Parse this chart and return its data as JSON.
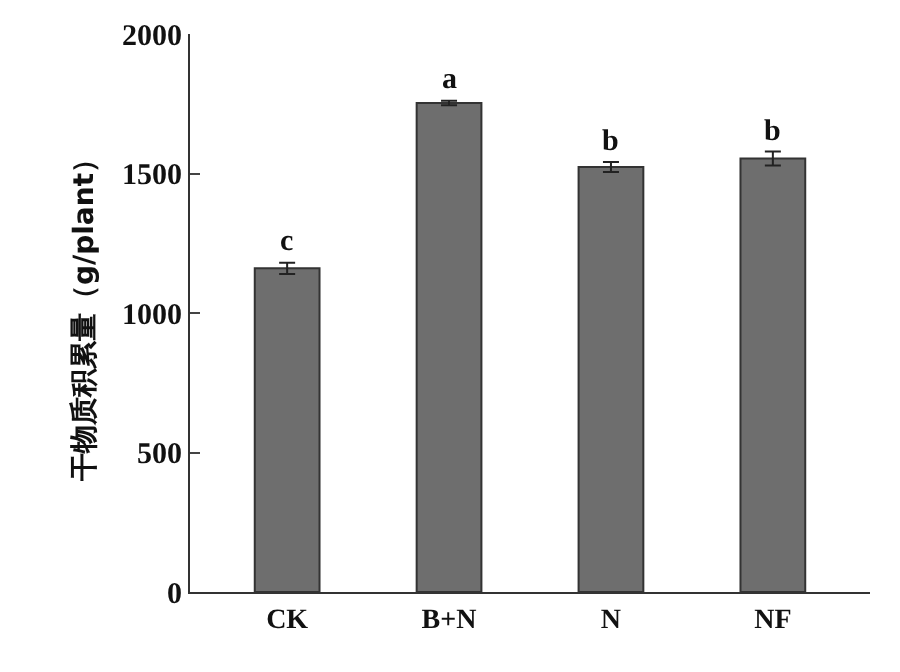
{
  "chart_data": {
    "type": "bar",
    "ylabel": "干物质积累量（g/plant）",
    "categories": [
      "CK",
      "B+N",
      "N",
      "NF"
    ],
    "values": [
      1160,
      1753,
      1523,
      1554
    ],
    "errors": [
      20,
      8,
      18,
      25
    ],
    "color": "#6e6e6e",
    "ylim": [
      0,
      2000
    ],
    "yticks": [
      0,
      500,
      1000,
      1500,
      2000
    ],
    "annotations": [
      {
        "text": "c",
        "x": "CK",
        "y": 1180
      },
      {
        "text": "a",
        "x": "B+N",
        "y": 1761
      },
      {
        "text": "b",
        "x": "N",
        "y": 1541
      },
      {
        "text": "b",
        "x": "NF",
        "y": 1579
      }
    ]
  }
}
